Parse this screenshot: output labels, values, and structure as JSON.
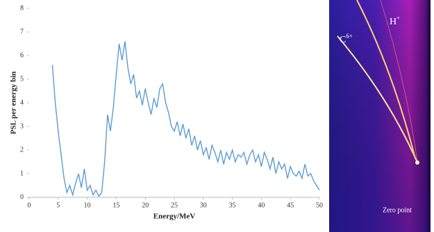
{
  "chart_data": {
    "type": "line",
    "x_label": "Energy/MeV",
    "y_label": "PSL per energy bin",
    "xlim": [
      0,
      50
    ],
    "xticks": [
      0,
      5,
      10,
      15,
      20,
      25,
      30,
      35,
      40,
      45,
      50
    ],
    "ylim": [
      0,
      8
    ],
    "yticks": [
      0,
      1,
      2,
      3,
      4,
      5,
      6,
      7,
      8
    ],
    "series": [
      {
        "color": "#5b9bd5",
        "x": [
          4,
          4.5,
          5,
          5.5,
          6,
          6.5,
          7,
          7.5,
          8,
          8.5,
          9,
          9.5,
          10,
          10.5,
          11,
          11.5,
          12,
          12.5,
          13,
          13.5,
          14,
          14.5,
          15,
          15.5,
          16,
          16.5,
          17,
          17.5,
          18,
          18.5,
          19,
          19.5,
          20,
          20.5,
          21,
          21.5,
          22,
          22.5,
          23,
          23.5,
          24,
          24.5,
          25,
          25.5,
          26,
          26.5,
          27,
          27.5,
          28,
          28.5,
          29,
          29.5,
          30,
          30.5,
          31,
          31.5,
          32,
          32.5,
          33,
          33.5,
          34,
          34.5,
          35,
          35.5,
          36,
          36.5,
          37,
          37.5,
          38,
          38.5,
          39,
          39.5,
          40,
          40.5,
          41,
          41.5,
          42,
          42.5,
          43,
          43.5,
          44,
          44.5,
          45,
          45.5,
          46,
          46.5,
          47,
          47.5,
          48,
          48.5,
          49,
          49.5,
          50
        ],
        "values": [
          5.6,
          4.0,
          2.8,
          1.8,
          0.8,
          0.2,
          0.5,
          0.1,
          0.6,
          1.0,
          0.4,
          1.2,
          0.3,
          0.5,
          0.1,
          0.3,
          0.05,
          0.2,
          1.5,
          3.5,
          2.8,
          3.8,
          5.2,
          6.5,
          5.8,
          6.6,
          5.5,
          4.8,
          5.2,
          4.2,
          4.5,
          3.9,
          4.6,
          4.0,
          3.5,
          4.2,
          3.8,
          4.6,
          4.8,
          4.0,
          3.6,
          3.0,
          2.8,
          3.2,
          2.6,
          3.1,
          2.5,
          2.9,
          2.2,
          2.6,
          2.0,
          2.4,
          1.8,
          2.1,
          1.6,
          2.2,
          1.9,
          1.5,
          2.0,
          1.4,
          1.9,
          1.6,
          2.0,
          1.5,
          1.8,
          1.7,
          1.9,
          1.4,
          1.8,
          2.0,
          1.5,
          1.8,
          1.3,
          1.9,
          1.6,
          1.2,
          1.7,
          1.0,
          1.5,
          1.2,
          1.4,
          0.8,
          1.3,
          1.0,
          0.9,
          1.1,
          0.8,
          1.4,
          0.9,
          1.0,
          0.7,
          0.5,
          0.3
        ]
      }
    ]
  },
  "image": {
    "labels": {
      "h_base": "H",
      "h_sup": "+",
      "c_base": "C",
      "c_sup": "6+",
      "zero": "Zero point"
    }
  }
}
